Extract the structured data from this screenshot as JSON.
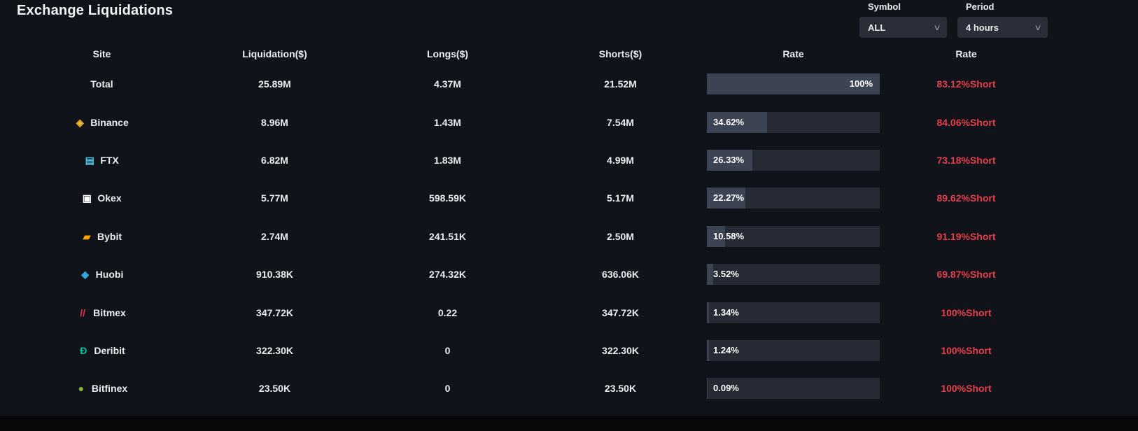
{
  "page": {
    "title": "Exchange Liquidations"
  },
  "filters": {
    "symbol_label": "Symbol",
    "symbol_value": "ALL",
    "period_label": "Period",
    "period_value": "4 hours"
  },
  "colors": {
    "short_red": "#e6404d",
    "bar_track": "#252a34",
    "bar_fill": "#3c4353",
    "dropdown_bg": "#2a2e39",
    "background": "#10131a"
  },
  "table": {
    "headers": [
      "Site",
      "Liquidation($)",
      "Longs($)",
      "Shorts($)",
      "Rate",
      "Rate"
    ],
    "rows": [
      {
        "site": "Total",
        "icon": {
          "glyph": "",
          "color": ""
        },
        "liquidation": "25.89M",
        "longs": "4.37M",
        "shorts": "21.52M",
        "rate_pct": 100,
        "rate_label": "100%",
        "rate_align": "right",
        "short_label": "83.12%Short"
      },
      {
        "site": "Binance",
        "icon": {
          "glyph": "◈",
          "color": "#F3BA2F"
        },
        "liquidation": "8.96M",
        "longs": "1.43M",
        "shorts": "7.54M",
        "rate_pct": 34.62,
        "rate_label": "34.62%",
        "rate_align": "left",
        "short_label": "84.06%Short"
      },
      {
        "site": "FTX",
        "icon": {
          "glyph": "▤",
          "color": "#4FC2E0"
        },
        "liquidation": "6.82M",
        "longs": "1.83M",
        "shorts": "4.99M",
        "rate_pct": 26.33,
        "rate_label": "26.33%",
        "rate_align": "left",
        "short_label": "73.18%Short"
      },
      {
        "site": "Okex",
        "icon": {
          "glyph": "▣",
          "color": "#FFFFFF"
        },
        "liquidation": "5.77M",
        "longs": "598.59K",
        "shorts": "5.17M",
        "rate_pct": 22.27,
        "rate_label": "22.27%",
        "rate_align": "left",
        "short_label": "89.62%Short"
      },
      {
        "site": "Bybit",
        "icon": {
          "glyph": "▰",
          "color": "#F7A600"
        },
        "liquidation": "2.74M",
        "longs": "241.51K",
        "shorts": "2.50M",
        "rate_pct": 10.58,
        "rate_label": "10.58%",
        "rate_align": "left",
        "short_label": "91.19%Short"
      },
      {
        "site": "Huobi",
        "icon": {
          "glyph": "◆",
          "color": "#2EA7DF"
        },
        "liquidation": "910.38K",
        "longs": "274.32K",
        "shorts": "636.06K",
        "rate_pct": 3.52,
        "rate_label": "3.52%",
        "rate_align": "left",
        "short_label": "69.87%Short"
      },
      {
        "site": "Bitmex",
        "icon": {
          "glyph": "//",
          "color": "#E8344E"
        },
        "liquidation": "347.72K",
        "longs": "0.22",
        "shorts": "347.72K",
        "rate_pct": 1.34,
        "rate_label": "1.34%",
        "rate_align": "left",
        "short_label": "100%Short"
      },
      {
        "site": "Deribit",
        "icon": {
          "glyph": "Ð",
          "color": "#00C6A2"
        },
        "liquidation": "322.30K",
        "longs": "0",
        "shorts": "322.30K",
        "rate_pct": 1.24,
        "rate_label": "1.24%",
        "rate_align": "left",
        "short_label": "100%Short"
      },
      {
        "site": "Bitfinex",
        "icon": {
          "glyph": "●",
          "color": "#84B93F"
        },
        "liquidation": "23.50K",
        "longs": "0",
        "shorts": "23.50K",
        "rate_pct": 0.09,
        "rate_label": "0.09%",
        "rate_align": "left",
        "short_label": "100%Short"
      }
    ]
  }
}
